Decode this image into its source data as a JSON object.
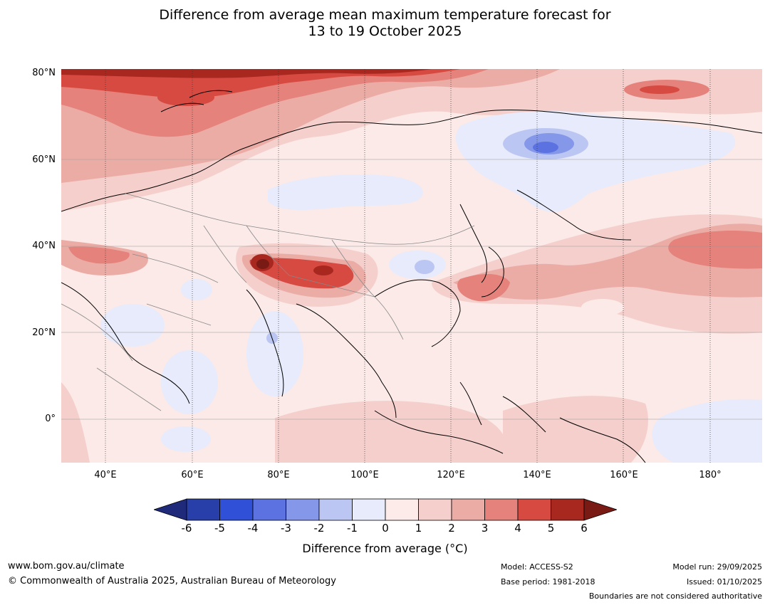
{
  "title_line1": "Difference from average mean maximum temperature forecast for",
  "title_line2": "13 to 19 October 2025",
  "lat_labels": [
    "80°N",
    "60°N",
    "40°N",
    "20°N",
    "0°"
  ],
  "lon_labels": [
    "40°E",
    "60°E",
    "80°E",
    "100°E",
    "120°E",
    "140°E",
    "160°E",
    "180°"
  ],
  "colorbar": {
    "ticks": [
      "-6",
      "-5",
      "-4",
      "-3",
      "-2",
      "-1",
      "0",
      "1",
      "2",
      "3",
      "4",
      "5",
      "6"
    ],
    "colors": [
      "#1f2a7a",
      "#283ea8",
      "#3050d8",
      "#5b72e0",
      "#8597e8",
      "#bcc6f2",
      "#e7ebfb",
      "#fcebe8",
      "#f4cfcc",
      "#ecaca6",
      "#e4827b",
      "#d64a42",
      "#a8281f",
      "#7a1a14"
    ],
    "label": "Difference from average (°C)"
  },
  "footer": {
    "website": "www.bom.gov.au/climate",
    "copyright": "© Commonwealth of Australia 2025, Australian Bureau of Meteorology",
    "model": "Model: ACCESS-S2",
    "base_period": "Base period: 1981-2018",
    "model_run": "Model run: 29/09/2025",
    "issued": "Issued: 01/10/2025",
    "disclaimer": "Boundaries are not considered authoritative"
  }
}
